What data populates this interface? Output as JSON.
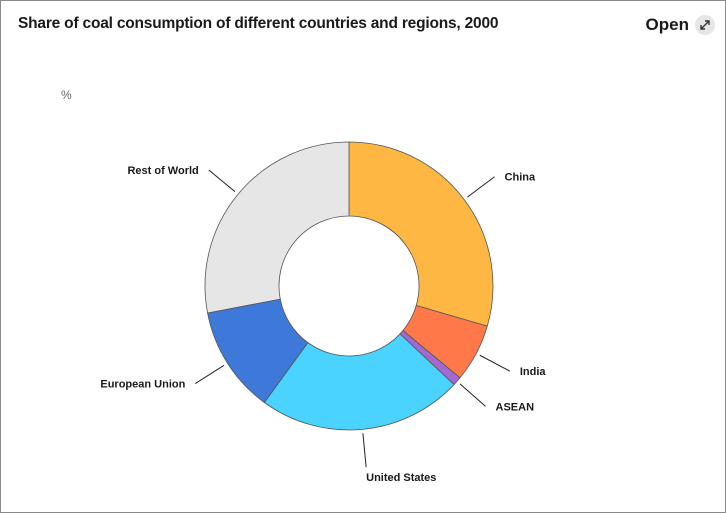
{
  "header": {
    "title": "Share of coal consumption of different countries and regions, 2000",
    "open_label": "Open"
  },
  "icons": {
    "open": "expand-arrows-icon"
  },
  "chart_data": {
    "type": "pie",
    "donut": true,
    "title": "Share of coal consumption of different countries and regions, 2000",
    "unit": "%",
    "legend": "none (direct labels)",
    "slices": [
      {
        "label": "China",
        "value": 29.5,
        "color": "#FFB744"
      },
      {
        "label": "India",
        "value": 6.5,
        "color": "#FF7849"
      },
      {
        "label": "ASEAN",
        "value": 1.0,
        "color": "#A269D1"
      },
      {
        "label": "United States",
        "value": 23.0,
        "color": "#4BD3FF"
      },
      {
        "label": "European Union",
        "value": 12.0,
        "color": "#3E78D8"
      },
      {
        "label": "Rest of World",
        "value": 28.0,
        "color": "#E6E6E6"
      }
    ]
  }
}
